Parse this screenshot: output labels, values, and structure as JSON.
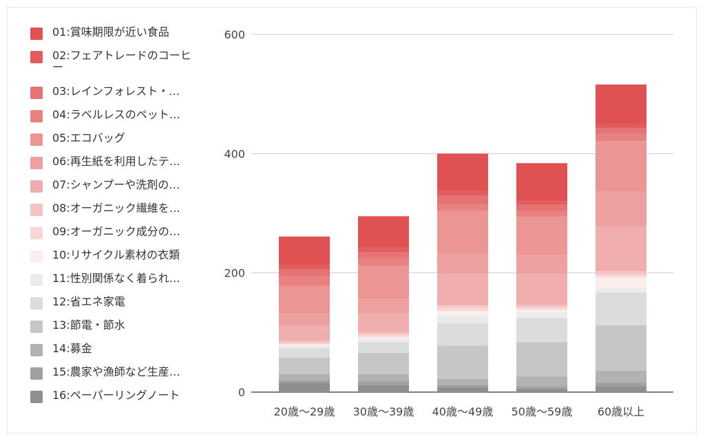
{
  "chart_data": {
    "type": "bar",
    "stacked": true,
    "categories": [
      "20歳〜29歳",
      "30歳〜39歳",
      "40歳〜49歳",
      "50歳〜59歳",
      "60歳以上"
    ],
    "ylim": [
      0,
      600
    ],
    "yticks": [
      "0",
      "200",
      "400",
      "600"
    ],
    "ytick_values": [
      0,
      200,
      400,
      600
    ],
    "grid": true,
    "legend_position": "left",
    "series": [
      {
        "name": "01:賞味期限が近い食品",
        "values": [
          47,
          53,
          64,
          64,
          67
        ],
        "color": "#e05252"
      },
      {
        "name": "02:フェアトレードのコーヒー",
        "values": [
          8,
          8,
          6,
          6,
          6
        ],
        "color": "#e25e5e"
      },
      {
        "name": "03:レインフォレスト・…",
        "values": [
          12,
          10,
          16,
          10,
          10
        ],
        "color": "#e67373"
      },
      {
        "name": "04:ラベルレスのペット…",
        "values": [
          16,
          12,
          10,
          10,
          12
        ],
        "color": "#e98181"
      },
      {
        "name": "05:エコバッグ",
        "values": [
          46,
          56,
          72,
          64,
          85
        ],
        "color": "#eb9595"
      },
      {
        "name": "06:再生紙を利用したテ…",
        "values": [
          20,
          24,
          34,
          32,
          58
        ],
        "color": "#eda0a0"
      },
      {
        "name": "07:シャンプーや洗剤の…",
        "values": [
          26,
          32,
          52,
          52,
          75
        ],
        "color": "#efadad"
      },
      {
        "name": "08:オーガニック繊維を…",
        "values": [
          4,
          4,
          4,
          4,
          6
        ],
        "color": "#f4c4c4"
      },
      {
        "name": "09:オーガニック成分の…",
        "values": [
          2,
          4,
          6,
          4,
          4
        ],
        "color": "#f8d6d6"
      },
      {
        "name": "10:リサイクル素材の衣類",
        "values": [
          2,
          2,
          8,
          4,
          18
        ],
        "color": "#fdeeee"
      },
      {
        "name": "11:性別関係なく着られ…",
        "values": [
          4,
          6,
          12,
          10,
          8
        ],
        "color": "#ebebeb"
      },
      {
        "name": "12:省エネ家電",
        "values": [
          16,
          18,
          38,
          40,
          55
        ],
        "color": "#dcdcdc"
      },
      {
        "name": "13:節電・節水",
        "values": [
          28,
          36,
          56,
          58,
          76
        ],
        "color": "#c6c6c6"
      },
      {
        "name": "14:募金",
        "values": [
          10,
          12,
          10,
          16,
          20
        ],
        "color": "#b2b2b2"
      },
      {
        "name": "15:農家や漁師など生産…",
        "values": [
          4,
          6,
          4,
          4,
          6
        ],
        "color": "#a0a0a0"
      },
      {
        "name": "16:ペーパーリングノート",
        "values": [
          16,
          12,
          8,
          6,
          10
        ],
        "color": "#8f8f8f"
      }
    ]
  }
}
